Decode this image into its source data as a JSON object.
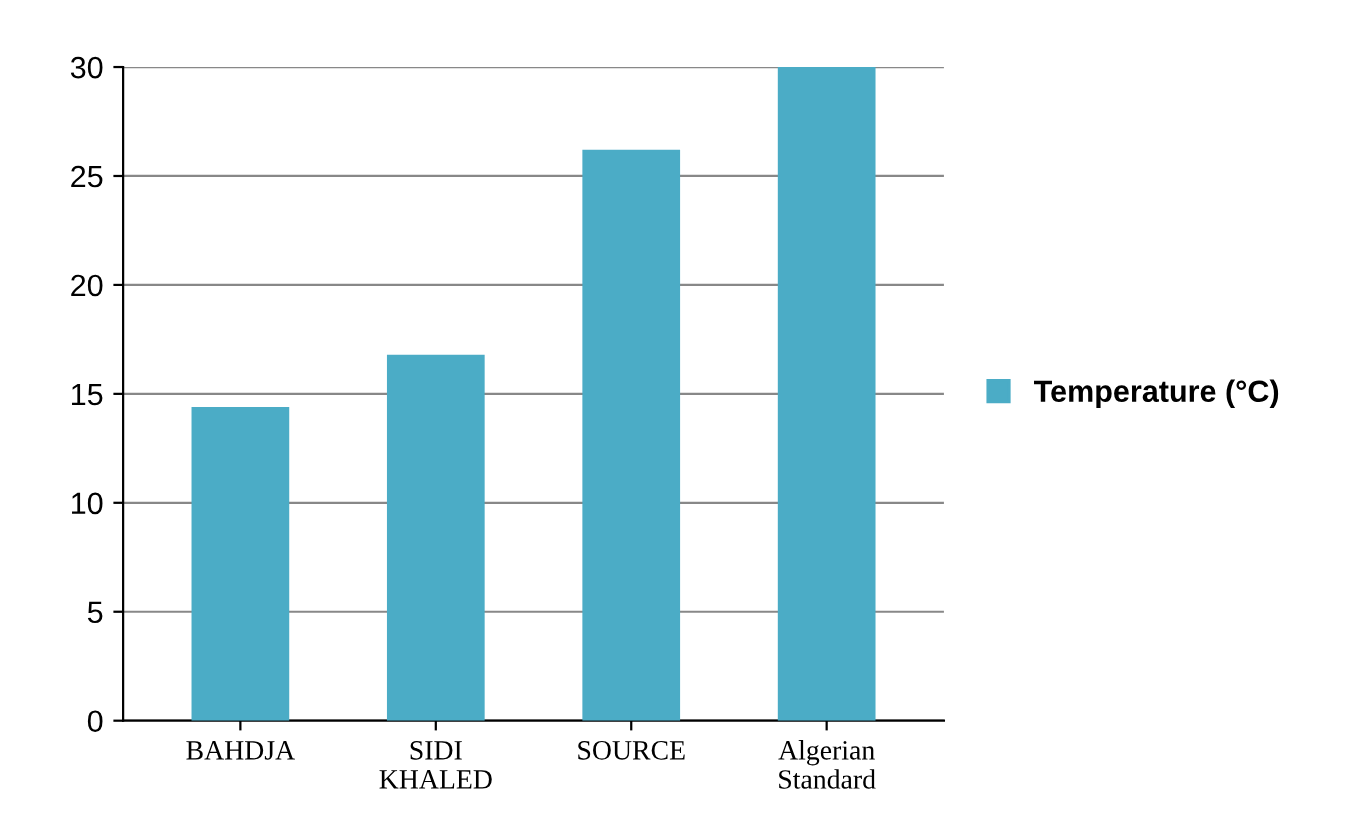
{
  "chart_data": {
    "type": "bar",
    "categories": [
      "BAHDJA",
      "SIDI\nKHALED",
      "SOURCE",
      "Algerian\nStandard"
    ],
    "series": [
      {
        "name": "Temperature (°C)",
        "color": "#4bacc6",
        "values": [
          14.4,
          16.8,
          26.2,
          30
        ]
      }
    ],
    "ylim": [
      0,
      30
    ],
    "yticks": [
      0,
      5,
      10,
      15,
      20,
      25,
      30
    ],
    "grid": "y",
    "legend": "right"
  }
}
